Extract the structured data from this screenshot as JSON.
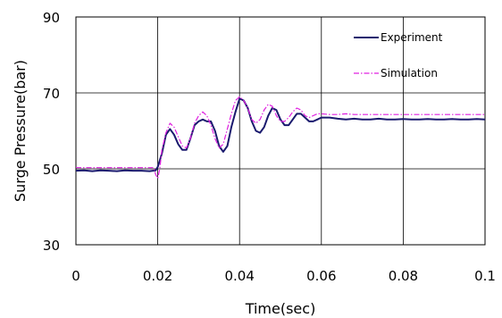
{
  "chart_data": {
    "type": "line",
    "title": "",
    "xlabel": "Time(sec)",
    "ylabel": "Surge Pressure(bar)",
    "xlim": [
      0,
      0.1
    ],
    "ylim": [
      30,
      90
    ],
    "x_ticks": [
      "0",
      "0.02",
      "0.04",
      "0.06",
      "0.08",
      "0.1"
    ],
    "y_ticks": [
      "90",
      "70",
      "50",
      "30"
    ],
    "grid": true,
    "legend_position": "top-right",
    "series": [
      {
        "name": "Experiment",
        "color": "#1a1a6e",
        "style": "solid",
        "x": [
          0,
          0.002,
          0.004,
          0.006,
          0.008,
          0.01,
          0.012,
          0.014,
          0.016,
          0.018,
          0.0195,
          0.02,
          0.021,
          0.022,
          0.023,
          0.024,
          0.025,
          0.026,
          0.027,
          0.028,
          0.029,
          0.03,
          0.031,
          0.032,
          0.033,
          0.034,
          0.035,
          0.036,
          0.037,
          0.038,
          0.039,
          0.04,
          0.041,
          0.042,
          0.043,
          0.044,
          0.045,
          0.046,
          0.047,
          0.048,
          0.049,
          0.05,
          0.051,
          0.052,
          0.053,
          0.054,
          0.055,
          0.056,
          0.057,
          0.058,
          0.059,
          0.06,
          0.062,
          0.064,
          0.066,
          0.068,
          0.07,
          0.072,
          0.074,
          0.076,
          0.078,
          0.08,
          0.082,
          0.084,
          0.086,
          0.088,
          0.09,
          0.092,
          0.094,
          0.096,
          0.098,
          0.1
        ],
        "y": [
          49.5,
          49.6,
          49.4,
          49.6,
          49.5,
          49.4,
          49.6,
          49.5,
          49.5,
          49.4,
          49.6,
          50.5,
          54,
          59,
          60.5,
          59,
          56.5,
          55,
          55,
          58,
          61.5,
          62.5,
          63,
          62.5,
          62.5,
          60,
          56,
          54.5,
          56,
          61,
          65,
          68.5,
          68,
          66,
          62.5,
          60,
          59.5,
          61,
          64,
          66,
          65.5,
          63,
          61.5,
          61.5,
          63,
          64.5,
          64.5,
          63.5,
          62.5,
          62.5,
          63,
          63.5,
          63.5,
          63.2,
          63,
          63.2,
          63,
          63,
          63.2,
          63,
          63,
          63.1,
          63,
          63,
          63.1,
          63,
          63,
          63.1,
          63,
          63,
          63.1,
          63
        ]
      },
      {
        "name": "Simulation",
        "color": "#e020e0",
        "style": "dash-dot",
        "x": [
          0,
          0.005,
          0.01,
          0.015,
          0.019,
          0.0195,
          0.02,
          0.0205,
          0.021,
          0.022,
          0.023,
          0.024,
          0.025,
          0.026,
          0.027,
          0.028,
          0.029,
          0.03,
          0.031,
          0.032,
          0.033,
          0.034,
          0.035,
          0.036,
          0.037,
          0.038,
          0.039,
          0.04,
          0.041,
          0.042,
          0.043,
          0.044,
          0.045,
          0.046,
          0.047,
          0.048,
          0.049,
          0.05,
          0.051,
          0.052,
          0.053,
          0.054,
          0.055,
          0.056,
          0.057,
          0.058,
          0.059,
          0.06,
          0.062,
          0.064,
          0.066,
          0.068,
          0.07,
          0.075,
          0.08,
          0.085,
          0.09,
          0.095,
          0.1
        ],
        "y": [
          50.3,
          50.3,
          50.3,
          50.3,
          50.3,
          48.5,
          47.5,
          50,
          55,
          59.5,
          62,
          61,
          58.5,
          56,
          55.5,
          58,
          62,
          64,
          65,
          64,
          61.5,
          58,
          55.5,
          56.5,
          60.5,
          64.5,
          68,
          69,
          68,
          66,
          63,
          62,
          63,
          65.5,
          67,
          66.5,
          64,
          62.5,
          62.5,
          63.5,
          65,
          66,
          65.5,
          64,
          63.5,
          64,
          64.5,
          64.5,
          64.3,
          64.3,
          64.5,
          64.3,
          64.3,
          64.3,
          64.3,
          64.3,
          64.3,
          64.3,
          64.3
        ]
      }
    ]
  }
}
